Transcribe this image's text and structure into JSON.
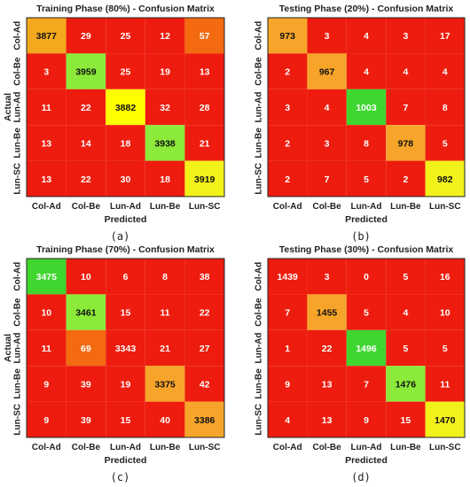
{
  "chart_data": [
    {
      "type": "heatmap",
      "title": "Training Phase (80%) - Confusion Matrix",
      "xlabel": "Predicted",
      "ylabel": "Actual",
      "panel_label": "(a)",
      "x_categories": [
        "Col-Ad",
        "Col-Be",
        "Lun-Ad",
        "Lun-Be",
        "Lun-SC"
      ],
      "y_categories": [
        "Col-Ad",
        "Col-Be",
        "Lun-Ad",
        "Lun-Be",
        "Lun-SC"
      ],
      "values": [
        [
          3877,
          29,
          25,
          12,
          57
        ],
        [
          3,
          3959,
          25,
          19,
          13
        ],
        [
          11,
          22,
          3882,
          32,
          28
        ],
        [
          13,
          14,
          18,
          3938,
          21
        ],
        [
          13,
          22,
          30,
          18,
          3919
        ]
      ]
    },
    {
      "type": "heatmap",
      "title": "Testing Phase (20%) - Confusion Matrix",
      "xlabel": "Predicted",
      "ylabel": "",
      "panel_label": "(b)",
      "x_categories": [
        "Col-Ad",
        "Col-Be",
        "Lun-Ad",
        "Lun-Be",
        "Lun-SC"
      ],
      "y_categories": [
        "Col-Ad",
        "Col-Be",
        "Lun-Ad",
        "Lun-Be",
        "Lun-SC"
      ],
      "values": [
        [
          973,
          3,
          4,
          3,
          17
        ],
        [
          2,
          967,
          4,
          4,
          4
        ],
        [
          3,
          4,
          1003,
          7,
          8
        ],
        [
          2,
          3,
          8,
          978,
          5
        ],
        [
          2,
          7,
          5,
          2,
          982
        ]
      ]
    },
    {
      "type": "heatmap",
      "title": "Training Phase (70%) - Confusion Matrix",
      "xlabel": "Predicted",
      "ylabel": "Actual",
      "panel_label": "(c)",
      "x_categories": [
        "Col-Ad",
        "Col-Be",
        "Lun-Ad",
        "Lun-Be",
        "Lun-SC"
      ],
      "y_categories": [
        "Col-Ad",
        "Col-Be",
        "Lun-Ad",
        "Lun-Be",
        "Lun-SC"
      ],
      "values": [
        [
          3475,
          10,
          6,
          8,
          38
        ],
        [
          10,
          3461,
          15,
          11,
          22
        ],
        [
          11,
          69,
          3343,
          21,
          27
        ],
        [
          9,
          39,
          19,
          3375,
          42
        ],
        [
          9,
          39,
          15,
          40,
          3386
        ]
      ]
    },
    {
      "type": "heatmap",
      "title": "Testing Phase (30%) - Confusion Matrix",
      "xlabel": "Predicted",
      "ylabel": "",
      "panel_label": "(d)",
      "x_categories": [
        "Col-Ad",
        "Col-Be",
        "Lun-Ad",
        "Lun-Be",
        "Lun-SC"
      ],
      "y_categories": [
        "Col-Ad",
        "Col-Be",
        "Lun-Ad",
        "Lun-Be",
        "Lun-SC"
      ],
      "values": [
        [
          1439,
          3,
          0,
          5,
          16
        ],
        [
          7,
          1455,
          5,
          4,
          10
        ],
        [
          1,
          22,
          1496,
          5,
          5
        ],
        [
          9,
          13,
          7,
          1476,
          11
        ],
        [
          4,
          13,
          9,
          15,
          1470
        ]
      ]
    }
  ],
  "colors": {
    "base": "#ee1c0e",
    "cell_fills": [
      [
        "#f4a81e",
        "#ee1c0e",
        "#ee1c0e",
        "#ee1c0e",
        "#f36a10"
      ],
      [
        "#ee1c0e",
        "#8cea3a",
        "#ee1c0e",
        "#ee1c0e",
        "#ee1c0e"
      ],
      [
        "#ee1c0e",
        "#ee1c0e",
        "#ffff00",
        "#ee1c0e",
        "#ee1c0e"
      ],
      [
        "#ee1c0e",
        "#ee1c0e",
        "#ee1c0e",
        "#8cea3a",
        "#ee1c0e"
      ],
      [
        "#ee1c0e",
        "#ee1c0e",
        "#ee1c0e",
        "#ee1c0e",
        "#f2f21a"
      ]
    ],
    "cell_fills_b": [
      [
        "#f7a52a",
        "#ee1c0e",
        "#ee1c0e",
        "#ee1c0e",
        "#ee1c0e"
      ],
      [
        "#ee1c0e",
        "#f7a52a",
        "#ee1c0e",
        "#ee1c0e",
        "#ee1c0e"
      ],
      [
        "#ee1c0e",
        "#ee1c0e",
        "#3fd62f",
        "#ee1c0e",
        "#ee1c0e"
      ],
      [
        "#ee1c0e",
        "#ee1c0e",
        "#ee1c0e",
        "#f7a52a",
        "#ee1c0e"
      ],
      [
        "#ee1c0e",
        "#ee1c0e",
        "#ee1c0e",
        "#ee1c0e",
        "#f2f21a"
      ]
    ],
    "cell_fills_c": [
      [
        "#3fd62f",
        "#ee1c0e",
        "#ee1c0e",
        "#ee1c0e",
        "#ee1c0e"
      ],
      [
        "#ee1c0e",
        "#8cea3a",
        "#ee1c0e",
        "#ee1c0e",
        "#ee1c0e"
      ],
      [
        "#ee1c0e",
        "#f36a10",
        "#ee1c0e",
        "#ee1c0e",
        "#ee1c0e"
      ],
      [
        "#ee1c0e",
        "#ee1c0e",
        "#ee1c0e",
        "#f7a52a",
        "#ee1c0e"
      ],
      [
        "#ee1c0e",
        "#ee1c0e",
        "#ee1c0e",
        "#ee1c0e",
        "#f7a52a"
      ]
    ],
    "cell_fills_d": [
      [
        "#ee1c0e",
        "#ee1c0e",
        "#ee1c0e",
        "#ee1c0e",
        "#ee1c0e"
      ],
      [
        "#ee1c0e",
        "#f7a52a",
        "#ee1c0e",
        "#ee1c0e",
        "#ee1c0e"
      ],
      [
        "#ee1c0e",
        "#ee1c0e",
        "#3fd62f",
        "#ee1c0e",
        "#ee1c0e"
      ],
      [
        "#ee1c0e",
        "#ee1c0e",
        "#ee1c0e",
        "#8cea3a",
        "#ee1c0e"
      ],
      [
        "#ee1c0e",
        "#ee1c0e",
        "#ee1c0e",
        "#ee1c0e",
        "#f2f21a"
      ]
    ]
  }
}
